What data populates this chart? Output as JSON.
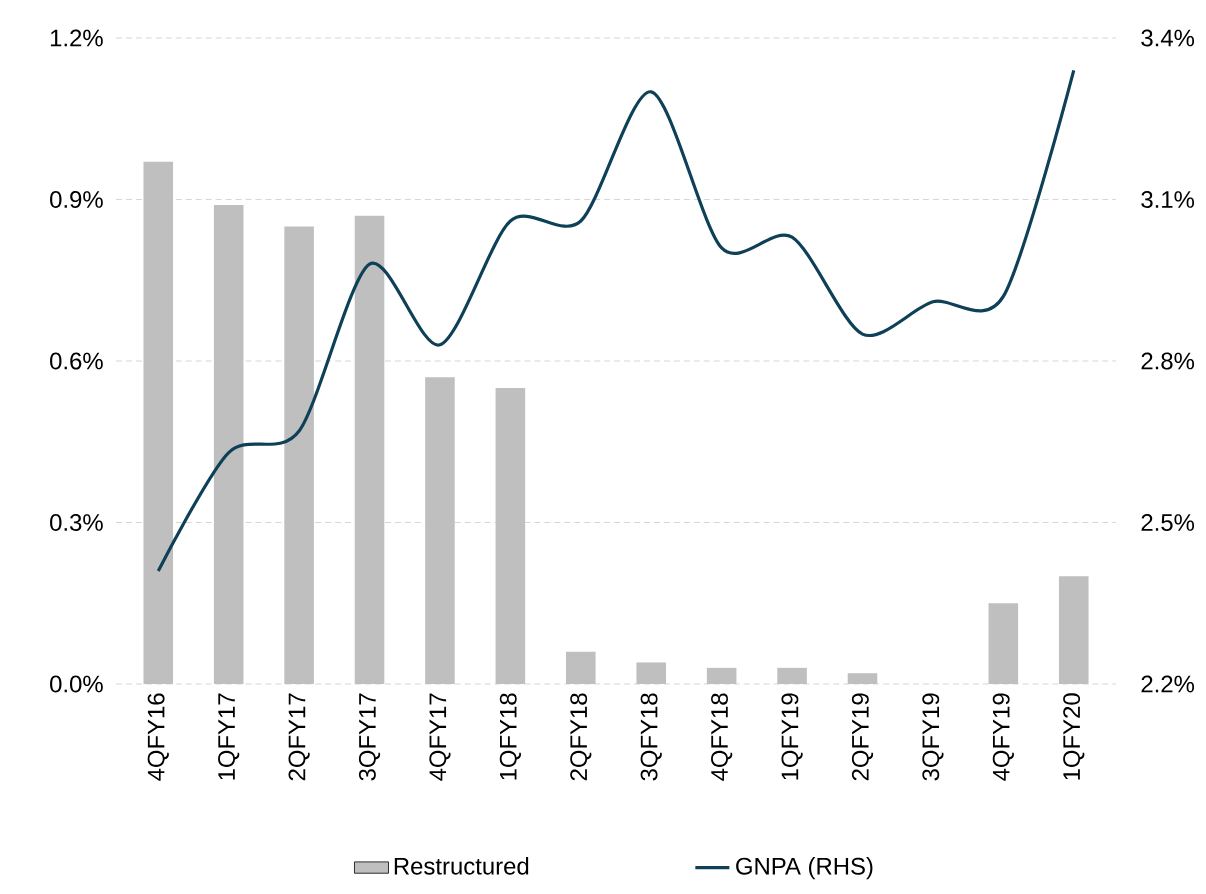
{
  "chart_data": {
    "type": "bar",
    "categories": [
      "4QFY16",
      "1QFY17",
      "2QFY17",
      "3QFY17",
      "4QFY17",
      "1QFY18",
      "2QFY18",
      "3QFY18",
      "4QFY18",
      "1QFY19",
      "2QFY19",
      "3QFY19",
      "4QFY19",
      "1QFY20"
    ],
    "series": [
      {
        "name": "Restructured",
        "color": "#bfbfbf",
        "values": [
          0.97,
          0.89,
          0.85,
          0.87,
          0.57,
          0.55,
          0.06,
          0.04,
          0.03,
          0.03,
          0.02,
          null,
          0.15,
          0.2
        ]
      },
      {
        "name": "GNPA (RHS)",
        "type": "line",
        "axis": "y2",
        "color": "#0e4057",
        "values": [
          2.41,
          2.63,
          2.67,
          2.98,
          2.83,
          3.06,
          3.06,
          3.3,
          3.01,
          3.03,
          2.85,
          2.91,
          2.92,
          3.34
        ]
      }
    ],
    "ylim": [
      0,
      1.2
    ],
    "yticks": [
      {
        "value": 0,
        "label": "0.0%"
      },
      {
        "value": 0.3,
        "label": "0.3%"
      },
      {
        "value": 0.6,
        "label": "0.6%"
      },
      {
        "value": 0.9,
        "label": "0.9%"
      },
      {
        "value": 1.2,
        "label": "1.2%"
      }
    ],
    "y2lim": [
      2.2,
      3.4
    ],
    "y2ticks": [
      {
        "value": 2.2,
        "label": "2.2%"
      },
      {
        "value": 2.5,
        "label": "2.5%"
      },
      {
        "value": 2.8,
        "label": "2.8%"
      },
      {
        "value": 3.1,
        "label": "3.1%"
      },
      {
        "value": 3.4,
        "label": "3.4%"
      }
    ],
    "grid": "y",
    "legend": "bottom",
    "line_style": "solid",
    "marker": "none"
  }
}
